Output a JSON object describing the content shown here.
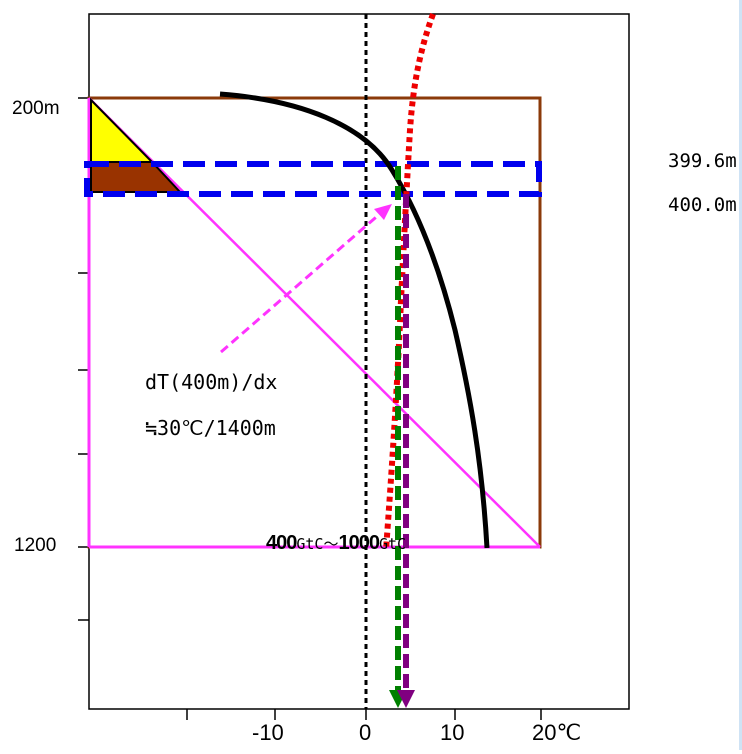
{
  "y_labels": {
    "top": "200m",
    "bottom": "1200"
  },
  "x_labels": [
    "-10",
    "0",
    "10",
    "20℃"
  ],
  "right_labels": {
    "upper": "399.6m",
    "lower": "400.0m"
  },
  "annotation": {
    "line1": "dT(400m)/dx",
    "line2": "≒30℃/1400m"
  },
  "carbon": {
    "low_num": "400",
    "low_unit": "GtC",
    "sep": "～",
    "high_num": "1000",
    "high_unit": "GtC"
  },
  "colors": {
    "frame": "#000000",
    "box": "#8b3a0a",
    "magenta": "#ff33ff",
    "yellow": "#ffff00",
    "brown_fill": "#993300",
    "blue": "#0000ee",
    "red": "#ee0000",
    "green": "#008000",
    "purple": "#800080",
    "black_curve": "#000000"
  }
}
